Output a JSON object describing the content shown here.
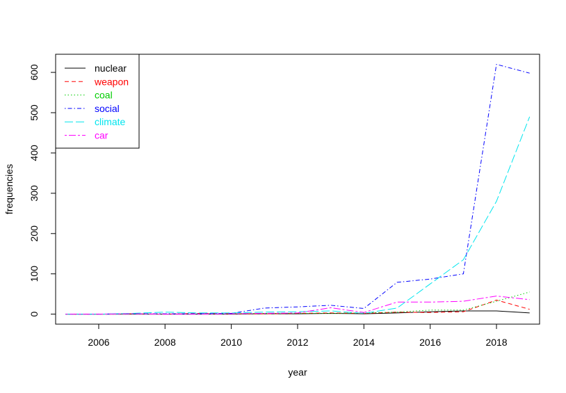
{
  "chart_data": {
    "type": "line",
    "title": "",
    "xlabel": "year",
    "ylabel": "frequencies",
    "xlim": [
      2004.7,
      2019.3
    ],
    "ylim": [
      -24.8,
      645.0
    ],
    "xticks": [
      2006,
      2008,
      2010,
      2012,
      2014,
      2016,
      2018
    ],
    "xtick_labels": [
      "2006",
      "2008",
      "2010",
      "2012",
      "2014",
      "2016",
      "2018"
    ],
    "yticks": [
      0,
      100,
      200,
      300,
      400,
      500,
      600
    ],
    "ytick_labels": [
      "0",
      "100",
      "200",
      "300",
      "400",
      "500",
      "600"
    ],
    "grid": false,
    "legend_position": "top-left",
    "x": [
      2005,
      2006,
      2007,
      2008,
      2009,
      2010,
      2011,
      2012,
      2013,
      2014,
      2015,
      2016,
      2017,
      2018,
      2019
    ],
    "series": [
      {
        "name": "nuclear",
        "color": "#000000",
        "dash": "solid",
        "values": [
          0,
          0,
          0,
          0,
          0,
          0,
          1,
          1,
          2,
          1,
          3,
          6,
          8,
          8,
          3
        ]
      },
      {
        "name": "weapon",
        "color": "#ff0000",
        "dash": "dashed",
        "values": [
          0,
          0,
          1,
          0,
          2,
          1,
          1,
          2,
          3,
          2,
          5,
          4,
          6,
          35,
          12
        ]
      },
      {
        "name": "coal",
        "color": "#00cd00",
        "dash": "dotted",
        "values": [
          0,
          0,
          0,
          1,
          1,
          1,
          2,
          2,
          2,
          3,
          5,
          10,
          10,
          32,
          55
        ]
      },
      {
        "name": "social",
        "color": "#0000ff",
        "dash": "dotdash",
        "values": [
          0,
          0,
          1,
          1,
          1,
          2,
          15,
          18,
          22,
          14,
          79,
          87,
          100,
          620,
          598
        ]
      },
      {
        "name": "climate",
        "color": "#00e5ee",
        "dash": "longdash",
        "values": [
          0,
          0,
          2,
          5,
          3,
          3,
          5,
          6,
          8,
          2,
          15,
          75,
          135,
          280,
          490
        ]
      },
      {
        "name": "car",
        "color": "#ff00ff",
        "dash": "twodash",
        "values": [
          0,
          0,
          1,
          0,
          0,
          1,
          2,
          3,
          16,
          4,
          30,
          30,
          32,
          45,
          36
        ]
      }
    ]
  }
}
